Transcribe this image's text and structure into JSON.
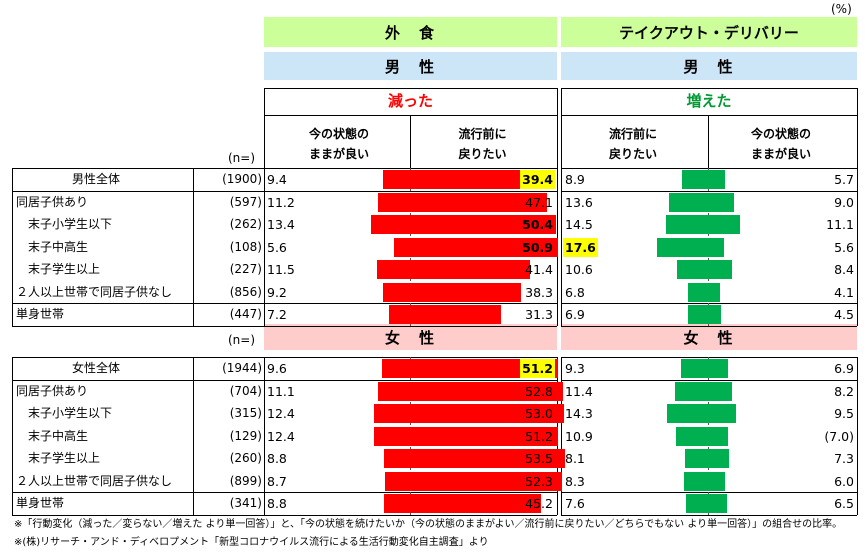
{
  "unit": "(%)",
  "headers": {
    "eat_out": "外　食",
    "takeout": "テイクアウト・デリバリー",
    "male": "男　性",
    "female": "女　性",
    "decreased": "減った",
    "increased": "増えた",
    "col_left_keep": "今の状態の\nままが良い",
    "col_left_back": "流行前に\n戻りたい",
    "col_right_back": "流行前に\n戻りたい",
    "col_right_keep": "今の状態の\nままが良い",
    "n_label": "(n=)"
  },
  "colors": {
    "green_header": "#ccff99",
    "male_header": "#cce6f8",
    "female_header": "#ffcccc",
    "decreased_text": "#ff0000",
    "increased_text": "#009933",
    "red_bar": "#ff0000",
    "green_bar": "#00b050",
    "highlight": "#ffff00"
  },
  "chart_data": {
    "type": "bar",
    "male": [
      {
        "label": "男性全体",
        "n": "(1900)",
        "out_keep": 9.4,
        "out_back": 39.4,
        "to_back": 8.9,
        "to_keep": 5.7,
        "hi_out_back": true
      },
      {
        "label": "同居子供あり",
        "n": "(597)",
        "out_keep": 11.2,
        "out_back": 47.1,
        "to_back": 13.6,
        "to_keep": 9.0
      },
      {
        "label": "末子小学生以下",
        "n": "(262)",
        "out_keep": 13.4,
        "out_back": 50.4,
        "to_back": 14.5,
        "to_keep": 11.1,
        "bold_out_back": true
      },
      {
        "label": "末子中高生",
        "n": "(108)",
        "out_keep": 5.6,
        "out_back": 50.9,
        "to_back": 17.6,
        "to_keep": 5.6,
        "bold_out_back": true,
        "hi_to_back": true
      },
      {
        "label": "末子学生以上",
        "n": "(227)",
        "out_keep": 11.5,
        "out_back": 41.4,
        "to_back": 10.6,
        "to_keep": 8.4
      },
      {
        "label": "２人以上世帯で同居子供なし",
        "n": "(856)",
        "out_keep": 9.2,
        "out_back": 38.3,
        "to_back": 6.8,
        "to_keep": 4.1
      },
      {
        "label": "単身世帯",
        "n": "(447)",
        "out_keep": 7.2,
        "out_back": 31.3,
        "to_back": 6.9,
        "to_keep": 4.5
      }
    ],
    "female": [
      {
        "label": "女性全体",
        "n": "(1944)",
        "out_keep": 9.6,
        "out_back": 51.2,
        "to_back": 9.3,
        "to_keep": 6.9,
        "hi_out_back": true
      },
      {
        "label": "同居子供あり",
        "n": "(704)",
        "out_keep": 11.1,
        "out_back": 52.8,
        "to_back": 11.4,
        "to_keep": 8.2
      },
      {
        "label": "末子小学生以下",
        "n": "(315)",
        "out_keep": 12.4,
        "out_back": 53.0,
        "to_back": 14.3,
        "to_keep": 9.5
      },
      {
        "label": "末子中高生",
        "n": "(129)",
        "out_keep": 12.4,
        "out_back": 51.2,
        "to_back": 10.9,
        "to_keep": "(7.0)"
      },
      {
        "label": "末子学生以上",
        "n": "(260)",
        "out_keep": 8.8,
        "out_back": 53.5,
        "to_back": 8.1,
        "to_keep": 7.3
      },
      {
        "label": "２人以上世帯で同居子供なし",
        "n": "(899)",
        "out_keep": 8.7,
        "out_back": 52.3,
        "to_back": 8.3,
        "to_keep": 6.0
      },
      {
        "label": "単身世帯",
        "n": "(341)",
        "out_keep": 8.8,
        "out_back": 45.2,
        "to_back": 7.6,
        "to_keep": 6.5
      }
    ]
  },
  "notes": [
    "※「行動変化（減った／変らない／増えた より単一回答）」と、「今の状態を続けたいか（今の状態のままがよい／流行前に戻りたい／どちらでもない より単一回答）」の組合せの比率。",
    "※(株)リサーチ・アンド・ディベロプメント「新型コロナウイルス流行による生活行動変化自主調査」より"
  ]
}
